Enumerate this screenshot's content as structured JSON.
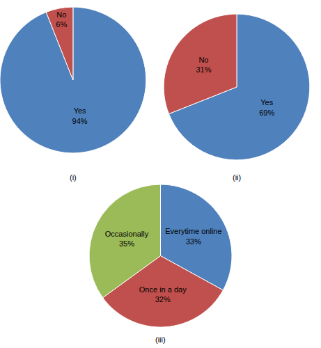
{
  "chart_data": [
    {
      "type": "pie",
      "title": "(i)",
      "categories": [
        "Yes",
        "No"
      ],
      "values": [
        94,
        6
      ],
      "value_labels": [
        "94%",
        "6%"
      ],
      "colors": [
        "#4f81bd",
        "#c0504d"
      ],
      "data_labels": true
    },
    {
      "type": "pie",
      "title": "(ii)",
      "categories": [
        "Yes",
        "No"
      ],
      "values": [
        69,
        31
      ],
      "value_labels": [
        "69%",
        "31%"
      ],
      "colors": [
        "#4f81bd",
        "#c0504d"
      ],
      "data_labels": true
    },
    {
      "type": "pie",
      "title": "(iii)",
      "categories": [
        "Everytime online",
        "Once in a day",
        "Occasionally"
      ],
      "values": [
        33,
        32,
        35
      ],
      "value_labels": [
        "33%",
        "32%",
        "35%"
      ],
      "colors": [
        "#4f81bd",
        "#c0504d",
        "#9bbb59"
      ],
      "data_labels": true
    }
  ]
}
